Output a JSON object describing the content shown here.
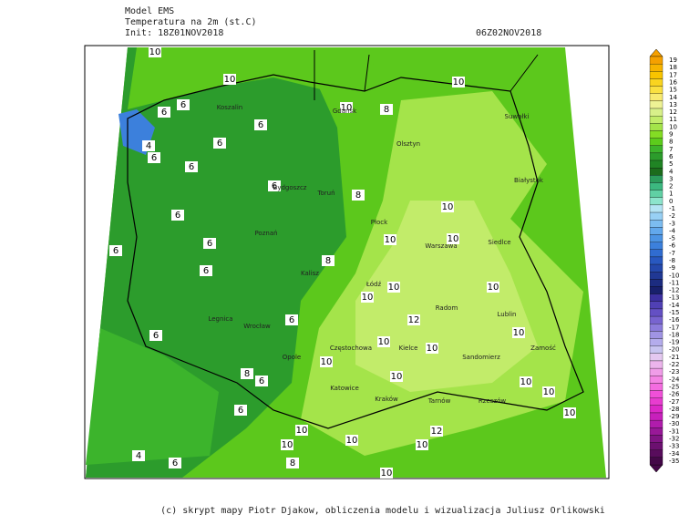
{
  "header": {
    "model": "Model EMS",
    "variable": "Temperatura na 2m (st.C)",
    "init": "Init: 18Z01NOV2018",
    "valid": "06Z02NOV2018"
  },
  "colorbar": {
    "labels": [
      19,
      18,
      17,
      16,
      15,
      14,
      13,
      12,
      11,
      10,
      9,
      8,
      7,
      6,
      5,
      4,
      3,
      2,
      1,
      0,
      -1,
      -2,
      -3,
      -4,
      -5,
      -6,
      -7,
      -8,
      -9,
      -10,
      -11,
      -12,
      -13,
      -14,
      -15,
      -16,
      -17,
      -18,
      -19,
      -20,
      -21,
      -22,
      -23,
      -24,
      -25,
      -26,
      -27,
      -28,
      -29,
      -30,
      -31,
      -32,
      -33,
      -34,
      -35
    ],
    "colors": [
      "#f5a000",
      "#f7b400",
      "#f8c400",
      "#f9d420",
      "#fae040",
      "#f8ea70",
      "#eef294",
      "#d8f08a",
      "#c2ec6a",
      "#a4e44a",
      "#84dc24",
      "#5ccc1c",
      "#3cb42c",
      "#2c9c2c",
      "#208424",
      "#1c6c1c",
      "#2c9c5c",
      "#3cb880",
      "#60d0a4",
      "#8ce4cc",
      "#b4e4f4",
      "#98d0f4",
      "#7cbcf0",
      "#62a8ec",
      "#4c94e4",
      "#3c80dc",
      "#306cd0",
      "#2858c0",
      "#2448ac",
      "#203894",
      "#1c2c80",
      "#18206c",
      "#3c30a0",
      "#5040b4",
      "#6450c4",
      "#7864d0",
      "#8c7cdc",
      "#a094e4",
      "#b4acec",
      "#c8c4f0",
      "#e4c8f0",
      "#ecb4ec",
      "#f09ce8",
      "#f484e4",
      "#f46ce0",
      "#f050d8",
      "#e83cd0",
      "#dc28c8",
      "#c820bc",
      "#b01cac",
      "#981898",
      "#801484",
      "#6c1070",
      "#580c5c",
      "#440848"
    ]
  },
  "map": {
    "contour_labels": [
      10,
      10,
      10,
      6,
      6,
      10,
      8,
      4,
      6,
      6,
      6,
      6,
      6,
      8,
      10,
      6,
      6,
      6,
      8,
      10,
      10,
      6,
      10,
      10,
      10,
      12,
      6,
      6,
      10,
      10,
      10,
      10,
      8,
      6,
      10,
      6,
      10,
      10,
      10,
      10,
      10,
      12,
      10,
      10,
      4,
      6,
      8,
      10
    ],
    "cities": [
      "Koszalin",
      "Gdańsk",
      "Olsztyn",
      "Suwałki",
      "Białystok",
      "Bydgoszcz",
      "Toruń",
      "Poznań",
      "Warszawa",
      "Łódź",
      "Radom",
      "Lublin",
      "Wrocław",
      "Legnica",
      "Opole",
      "Częstochowa",
      "Kielce",
      "Sandomierz",
      "Zamość",
      "Katowice",
      "Kraków",
      "Tarnów",
      "Rzeszów",
      "Siedlce",
      "Płock",
      "Kalisz"
    ]
  },
  "footer": "(c) skrypt mapy Piotr Djakow, obliczenia modelu i wizualizacja Juliusz Orlikowski"
}
